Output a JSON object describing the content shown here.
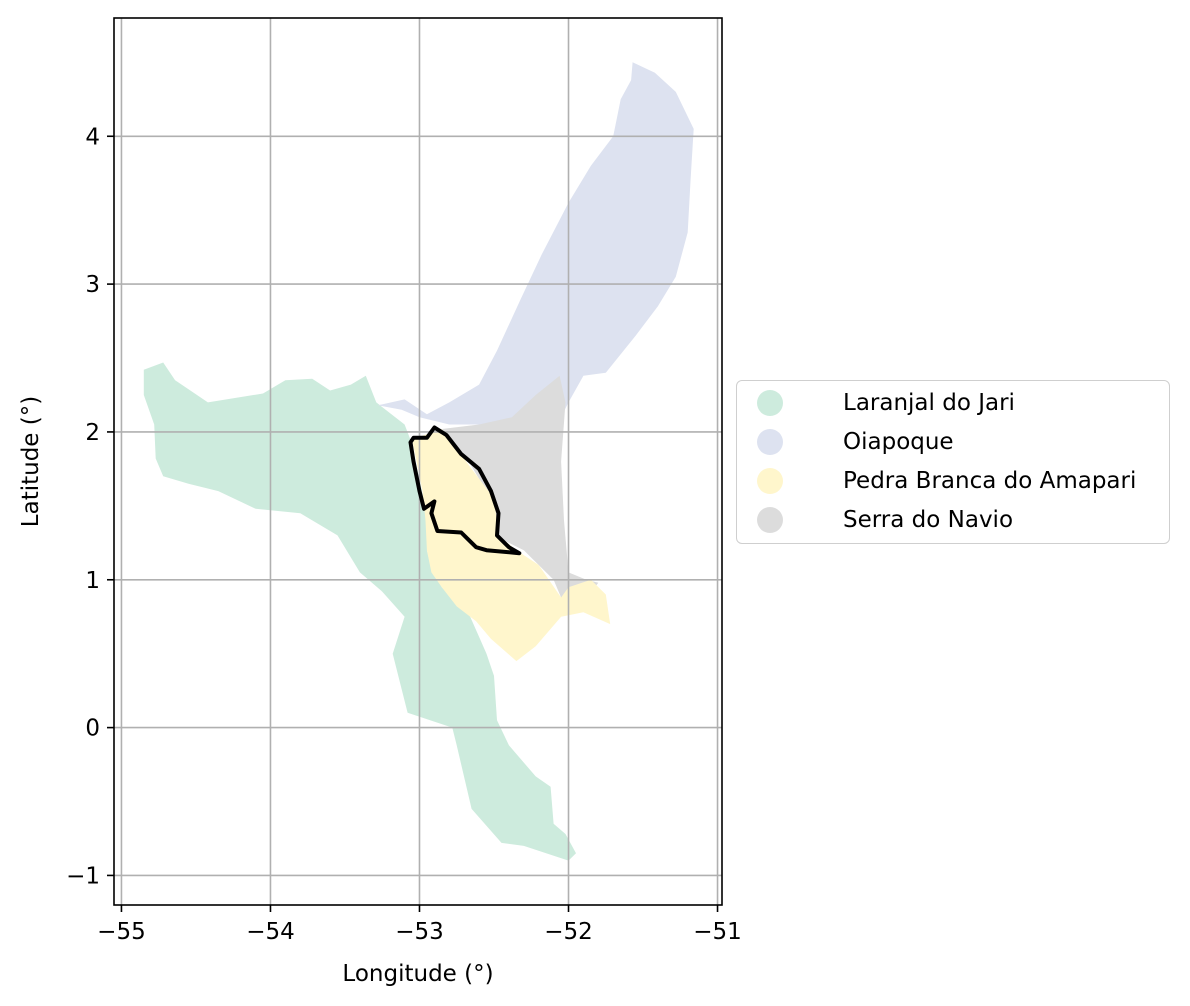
{
  "chart_data": {
    "type": "map",
    "xlabel": "Longitude (°)",
    "ylabel": "Latitude (°)",
    "xlim": [
      -55.05,
      -50.97
    ],
    "ylim": [
      -1.2,
      4.8
    ],
    "x_ticks": [
      -55,
      -54,
      -53,
      -52,
      -51
    ],
    "y_ticks": [
      -1,
      0,
      1,
      2,
      3,
      4
    ],
    "x_tick_labels": [
      "−55",
      "−54",
      "−53",
      "−52",
      "−51"
    ],
    "y_tick_labels": [
      "−1",
      "0",
      "1",
      "2",
      "3",
      "4"
    ],
    "grid": true,
    "legend_position": "center-right outside",
    "regions": [
      {
        "name": "Laranjal do Jari",
        "color": "#cdebdd",
        "polygon": [
          [
            -54.85,
            2.42
          ],
          [
            -54.72,
            2.47
          ],
          [
            -54.64,
            2.35
          ],
          [
            -54.42,
            2.2
          ],
          [
            -54.05,
            2.26
          ],
          [
            -53.9,
            2.35
          ],
          [
            -53.72,
            2.36
          ],
          [
            -53.6,
            2.28
          ],
          [
            -53.46,
            2.32
          ],
          [
            -53.36,
            2.38
          ],
          [
            -53.29,
            2.2
          ],
          [
            -53.1,
            2.05
          ],
          [
            -53.05,
            1.92
          ],
          [
            -52.98,
            1.58
          ],
          [
            -52.96,
            1.5
          ],
          [
            -52.92,
            1.35
          ],
          [
            -52.95,
            1.2
          ],
          [
            -52.92,
            1.07
          ],
          [
            -52.85,
            0.95
          ],
          [
            -52.66,
            0.75
          ],
          [
            -52.55,
            0.5
          ],
          [
            -52.5,
            0.35
          ],
          [
            -52.48,
            0.05
          ],
          [
            -52.4,
            -0.12
          ],
          [
            -52.22,
            -0.33
          ],
          [
            -52.12,
            -0.4
          ],
          [
            -52.1,
            -0.65
          ],
          [
            -52.02,
            -0.72
          ],
          [
            -51.95,
            -0.85
          ],
          [
            -52.0,
            -0.9
          ],
          [
            -52.3,
            -0.8
          ],
          [
            -52.45,
            -0.78
          ],
          [
            -52.65,
            -0.55
          ],
          [
            -52.75,
            -0.12
          ],
          [
            -52.78,
            0.0
          ],
          [
            -53.08,
            0.1
          ],
          [
            -53.18,
            0.5
          ],
          [
            -53.1,
            0.75
          ],
          [
            -53.25,
            0.92
          ],
          [
            -53.4,
            1.05
          ],
          [
            -53.55,
            1.3
          ],
          [
            -53.8,
            1.45
          ],
          [
            -54.1,
            1.48
          ],
          [
            -54.35,
            1.6
          ],
          [
            -54.55,
            1.65
          ],
          [
            -54.72,
            1.7
          ],
          [
            -54.77,
            1.82
          ],
          [
            -54.78,
            2.05
          ],
          [
            -54.85,
            2.25
          ],
          [
            -54.85,
            2.42
          ]
        ]
      },
      {
        "name": "Oiapoque",
        "color": "#dde2f0",
        "polygon": [
          [
            -53.28,
            2.18
          ],
          [
            -53.1,
            2.22
          ],
          [
            -52.95,
            2.12
          ],
          [
            -52.8,
            2.2
          ],
          [
            -52.6,
            2.32
          ],
          [
            -52.48,
            2.55
          ],
          [
            -52.32,
            2.9
          ],
          [
            -52.18,
            3.2
          ],
          [
            -52.0,
            3.55
          ],
          [
            -51.85,
            3.8
          ],
          [
            -51.7,
            4.0
          ],
          [
            -51.65,
            4.25
          ],
          [
            -51.58,
            4.38
          ],
          [
            -51.57,
            4.5
          ],
          [
            -51.42,
            4.43
          ],
          [
            -51.28,
            4.3
          ],
          [
            -51.16,
            4.05
          ],
          [
            -51.18,
            3.72
          ],
          [
            -51.2,
            3.35
          ],
          [
            -51.28,
            3.05
          ],
          [
            -51.4,
            2.85
          ],
          [
            -51.55,
            2.65
          ],
          [
            -51.75,
            2.4
          ],
          [
            -51.9,
            2.38
          ],
          [
            -52.0,
            2.2
          ],
          [
            -52.1,
            2.0
          ],
          [
            -52.25,
            1.88
          ],
          [
            -52.42,
            2.0
          ],
          [
            -52.6,
            2.05
          ],
          [
            -52.8,
            2.05
          ],
          [
            -53.0,
            2.1
          ],
          [
            -53.12,
            2.15
          ],
          [
            -53.28,
            2.18
          ]
        ]
      },
      {
        "name": "Serra do Navio",
        "color": "#dcdcdc",
        "polygon": [
          [
            -52.85,
            2.02
          ],
          [
            -52.6,
            2.05
          ],
          [
            -52.38,
            2.1
          ],
          [
            -52.22,
            2.25
          ],
          [
            -52.06,
            2.38
          ],
          [
            -52.02,
            2.2
          ],
          [
            -52.05,
            1.8
          ],
          [
            -52.03,
            1.4
          ],
          [
            -52.0,
            1.05
          ],
          [
            -51.88,
            1.0
          ],
          [
            -51.8,
            0.98
          ],
          [
            -51.9,
            0.85
          ],
          [
            -52.05,
            0.88
          ],
          [
            -52.1,
            1.0
          ],
          [
            -52.3,
            1.2
          ],
          [
            -52.5,
            1.3
          ],
          [
            -52.55,
            1.6
          ],
          [
            -52.7,
            1.85
          ],
          [
            -52.85,
            2.02
          ]
        ]
      },
      {
        "name": "Pedra Branca do Amapari",
        "color": "#fff6cc",
        "polygon": [
          [
            -53.05,
            1.95
          ],
          [
            -52.98,
            1.6
          ],
          [
            -52.96,
            1.4
          ],
          [
            -52.95,
            1.2
          ],
          [
            -52.92,
            1.05
          ],
          [
            -52.85,
            0.95
          ],
          [
            -52.75,
            0.82
          ],
          [
            -52.62,
            0.72
          ],
          [
            -52.52,
            0.6
          ],
          [
            -52.35,
            0.45
          ],
          [
            -52.22,
            0.55
          ],
          [
            -52.05,
            0.75
          ],
          [
            -51.9,
            0.78
          ],
          [
            -51.72,
            0.7
          ],
          [
            -51.75,
            0.9
          ],
          [
            -51.85,
            1.0
          ],
          [
            -52.0,
            0.95
          ],
          [
            -52.05,
            0.88
          ],
          [
            -52.2,
            1.1
          ],
          [
            -52.35,
            1.2
          ],
          [
            -52.47,
            1.3
          ],
          [
            -52.5,
            1.55
          ],
          [
            -52.65,
            1.75
          ],
          [
            -52.85,
            2.02
          ],
          [
            -53.05,
            1.95
          ]
        ]
      }
    ],
    "highlight_outline": {
      "color": "#000000",
      "polygon": [
        [
          -53.04,
          1.96
        ],
        [
          -52.95,
          1.96
        ],
        [
          -52.9,
          2.03
        ],
        [
          -52.82,
          1.98
        ],
        [
          -52.72,
          1.85
        ],
        [
          -52.6,
          1.75
        ],
        [
          -52.52,
          1.6
        ],
        [
          -52.47,
          1.45
        ],
        [
          -52.48,
          1.3
        ],
        [
          -52.4,
          1.22
        ],
        [
          -52.33,
          1.18
        ],
        [
          -52.55,
          1.2
        ],
        [
          -52.62,
          1.22
        ],
        [
          -52.68,
          1.28
        ],
        [
          -52.72,
          1.32
        ],
        [
          -52.88,
          1.33
        ],
        [
          -52.92,
          1.45
        ],
        [
          -52.9,
          1.53
        ],
        [
          -52.97,
          1.48
        ],
        [
          -53.0,
          1.6
        ],
        [
          -53.04,
          1.8
        ],
        [
          -53.06,
          1.93
        ],
        [
          -53.04,
          1.96
        ]
      ]
    }
  },
  "legend": {
    "items": [
      {
        "label": "Laranjal do Jari",
        "color": "#cdebdd"
      },
      {
        "label": "Oiapoque",
        "color": "#dde2f0"
      },
      {
        "label": "Pedra Branca do Amapari",
        "color": "#fff6cc"
      },
      {
        "label": "Serra do Navio",
        "color": "#dcdcdc"
      }
    ]
  }
}
